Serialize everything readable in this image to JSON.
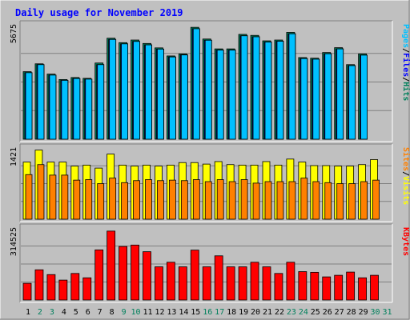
{
  "title": "Daily usage for November 2019",
  "colors": {
    "background": "#c0c0c0",
    "panel": "#c0c0c0",
    "title": "#0000ff",
    "hits": "#00805c",
    "files": "#0000ff",
    "pages": "#00c0ff",
    "visits": "#ffff00",
    "sites": "#ff8000",
    "kbytes": "#ff0000",
    "weekend": "#00805c",
    "weekday": "#000000"
  },
  "legends": {
    "top": [
      "Pages",
      "/",
      "Files",
      "/",
      "Hits"
    ],
    "middle": [
      "Sites",
      "/",
      "Visits"
    ],
    "bottom": [
      "KBytes"
    ]
  },
  "chart_data": [
    {
      "type": "bar",
      "panel": "top",
      "max_label": "5675",
      "ylim": [
        0,
        5675
      ],
      "categories": [
        "1",
        "2",
        "3",
        "4",
        "5",
        "6",
        "7",
        "8",
        "9",
        "10",
        "11",
        "12",
        "13",
        "14",
        "15",
        "16",
        "17",
        "18",
        "19",
        "20",
        "21",
        "22",
        "23",
        "24",
        "25",
        "26",
        "27",
        "28",
        "29",
        "30",
        "31"
      ],
      "series": [
        {
          "name": "Hits",
          "values": [
            3350,
            3740,
            3230,
            2960,
            3060,
            3020,
            3780,
            5010,
            4790,
            4920,
            4750,
            4530,
            4130,
            4230,
            5550,
            4970,
            4480,
            4480,
            5200,
            5150,
            4880,
            4920,
            5300,
            4050,
            4020,
            4300,
            4540,
            3700,
            4230,
            null,
            null
          ]
        },
        {
          "name": "Files",
          "values": [
            3300,
            3700,
            3180,
            2920,
            3010,
            2980,
            3700,
            4950,
            4730,
            4850,
            4680,
            4470,
            4080,
            4180,
            5480,
            4910,
            4420,
            4420,
            5130,
            5080,
            4820,
            4860,
            5230,
            4000,
            3970,
            4240,
            4480,
            3650,
            4170,
            null,
            null
          ]
        },
        {
          "name": "Pages",
          "values": [
            3300,
            3700,
            3180,
            2920,
            3010,
            2980,
            3700,
            4950,
            4730,
            4850,
            4680,
            4470,
            4080,
            4180,
            5480,
            4910,
            4420,
            4420,
            5130,
            5080,
            4820,
            4860,
            5230,
            4000,
            3970,
            4240,
            4480,
            3650,
            4170,
            null,
            null
          ]
        }
      ]
    },
    {
      "type": "bar",
      "panel": "middle",
      "max_label": "1421",
      "ylim": [
        0,
        1421
      ],
      "categories": [
        "1",
        "2",
        "3",
        "4",
        "5",
        "6",
        "7",
        "8",
        "9",
        "10",
        "11",
        "12",
        "13",
        "14",
        "15",
        "16",
        "17",
        "18",
        "19",
        "20",
        "21",
        "22",
        "23",
        "24",
        "25",
        "26",
        "27",
        "28",
        "29",
        "30",
        "31"
      ],
      "series": [
        {
          "name": "Visits",
          "values": [
            1140,
            1380,
            1140,
            1140,
            1060,
            1080,
            1020,
            1300,
            1080,
            1060,
            1080,
            1060,
            1080,
            1130,
            1130,
            1100,
            1150,
            1090,
            1080,
            1080,
            1150,
            1080,
            1200,
            1140,
            1070,
            1070,
            1060,
            1060,
            1090,
            1190,
            null
          ]
        },
        {
          "name": "Sites",
          "values": [
            890,
            1090,
            880,
            880,
            780,
            790,
            710,
            820,
            730,
            770,
            790,
            770,
            780,
            770,
            790,
            750,
            790,
            750,
            790,
            720,
            750,
            750,
            750,
            820,
            750,
            730,
            710,
            710,
            750,
            780,
            null
          ]
        }
      ]
    },
    {
      "type": "bar",
      "panel": "bottom",
      "max_label": "314525",
      "ylim": [
        0,
        314525
      ],
      "categories": [
        "1",
        "2",
        "3",
        "4",
        "5",
        "6",
        "7",
        "8",
        "9",
        "10",
        "11",
        "12",
        "13",
        "14",
        "15",
        "16",
        "17",
        "18",
        "19",
        "20",
        "21",
        "22",
        "23",
        "24",
        "25",
        "26",
        "27",
        "28",
        "29",
        "30",
        "31"
      ],
      "series": [
        {
          "name": "KBytes",
          "values": [
            73000,
            132000,
            111000,
            87000,
            116000,
            97000,
            219000,
            301000,
            234000,
            240000,
            211000,
            145000,
            165000,
            145000,
            218000,
            145000,
            193000,
            145000,
            145000,
            165000,
            145000,
            116000,
            165000,
            124000,
            121000,
            101000,
            108000,
            122000,
            97000,
            108000,
            null
          ]
        }
      ]
    }
  ],
  "days": [
    {
      "label": "1",
      "weekend": false
    },
    {
      "label": "2",
      "weekend": true
    },
    {
      "label": "3",
      "weekend": true
    },
    {
      "label": "4",
      "weekend": false
    },
    {
      "label": "5",
      "weekend": false
    },
    {
      "label": "6",
      "weekend": false
    },
    {
      "label": "7",
      "weekend": false
    },
    {
      "label": "8",
      "weekend": false
    },
    {
      "label": "9",
      "weekend": true
    },
    {
      "label": "10",
      "weekend": true
    },
    {
      "label": "11",
      "weekend": false
    },
    {
      "label": "12",
      "weekend": false
    },
    {
      "label": "13",
      "weekend": false
    },
    {
      "label": "14",
      "weekend": false
    },
    {
      "label": "15",
      "weekend": false
    },
    {
      "label": "16",
      "weekend": true
    },
    {
      "label": "17",
      "weekend": true
    },
    {
      "label": "18",
      "weekend": false
    },
    {
      "label": "19",
      "weekend": false
    },
    {
      "label": "20",
      "weekend": false
    },
    {
      "label": "21",
      "weekend": false
    },
    {
      "label": "22",
      "weekend": false
    },
    {
      "label": "23",
      "weekend": true
    },
    {
      "label": "24",
      "weekend": true
    },
    {
      "label": "25",
      "weekend": false
    },
    {
      "label": "26",
      "weekend": false
    },
    {
      "label": "27",
      "weekend": false
    },
    {
      "label": "28",
      "weekend": false
    },
    {
      "label": "29",
      "weekend": false
    },
    {
      "label": "30",
      "weekend": true
    },
    {
      "label": "31",
      "weekend": true
    }
  ]
}
